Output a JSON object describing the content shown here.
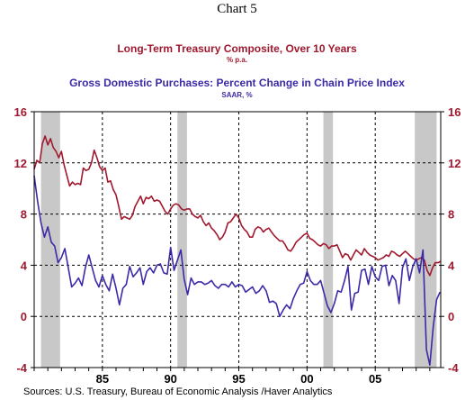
{
  "page": {
    "chart_label": "Chart 5",
    "source": "Sources:  U.S. Treasury, Bureau of Economic Analysis /Haver Analytics"
  },
  "colors": {
    "series1": "#a0192f",
    "series2": "#3b2aa8",
    "recession": "#c8c8c8"
  },
  "chart_data": {
    "type": "line",
    "xlim": [
      1980.0,
      2009.8
    ],
    "ylim": [
      -4,
      16
    ],
    "grid": true,
    "yticks_left": [
      16,
      12,
      8,
      4,
      0,
      -4
    ],
    "yticks_right": [
      16,
      12,
      8,
      4,
      0,
      -4
    ],
    "xtick_labels": [
      {
        "x": 1985,
        "label": "85"
      },
      {
        "x": 1990,
        "label": "90"
      },
      {
        "x": 1995,
        "label": "95"
      },
      {
        "x": 2000,
        "label": "00"
      },
      {
        "x": 2005,
        "label": "05"
      }
    ],
    "recessions": [
      {
        "start": 1980.5,
        "end": 1981.9
      },
      {
        "start": 1990.5,
        "end": 1991.2
      },
      {
        "start": 2001.2,
        "end": 2001.9
      },
      {
        "start": 2007.9,
        "end": 2009.5
      }
    ],
    "series": [
      {
        "name": "Long-Term Treasury Composite, Over 10 Years",
        "unit": "% p.a.",
        "points": [
          [
            1980.0,
            11.5
          ],
          [
            1980.2,
            12.2
          ],
          [
            1980.4,
            12.0
          ],
          [
            1980.6,
            13.5
          ],
          [
            1980.8,
            14.1
          ],
          [
            1981.0,
            13.4
          ],
          [
            1981.2,
            13.9
          ],
          [
            1981.4,
            13.2
          ],
          [
            1981.6,
            12.9
          ],
          [
            1981.8,
            12.4
          ],
          [
            1982.0,
            12.9
          ],
          [
            1982.2,
            11.8
          ],
          [
            1982.4,
            11.0
          ],
          [
            1982.6,
            10.2
          ],
          [
            1982.8,
            10.5
          ],
          [
            1983.0,
            10.3
          ],
          [
            1983.2,
            10.4
          ],
          [
            1983.4,
            10.3
          ],
          [
            1983.6,
            11.6
          ],
          [
            1983.8,
            11.4
          ],
          [
            1984.0,
            11.5
          ],
          [
            1984.2,
            12.0
          ],
          [
            1984.4,
            13.0
          ],
          [
            1984.6,
            12.4
          ],
          [
            1984.8,
            11.7
          ],
          [
            1985.0,
            11.4
          ],
          [
            1985.2,
            11.6
          ],
          [
            1985.4,
            10.5
          ],
          [
            1985.6,
            10.6
          ],
          [
            1985.8,
            9.9
          ],
          [
            1986.0,
            9.5
          ],
          [
            1986.2,
            8.6
          ],
          [
            1986.4,
            7.6
          ],
          [
            1986.6,
            7.8
          ],
          [
            1986.8,
            7.7
          ],
          [
            1987.0,
            7.6
          ],
          [
            1987.2,
            7.9
          ],
          [
            1987.4,
            8.6
          ],
          [
            1987.6,
            9.0
          ],
          [
            1987.8,
            9.4
          ],
          [
            1988.0,
            8.8
          ],
          [
            1988.2,
            9.3
          ],
          [
            1988.4,
            9.2
          ],
          [
            1988.6,
            9.4
          ],
          [
            1988.8,
            9.0
          ],
          [
            1989.0,
            9.1
          ],
          [
            1989.2,
            9.0
          ],
          [
            1989.4,
            8.6
          ],
          [
            1989.6,
            8.2
          ],
          [
            1989.8,
            8.0
          ],
          [
            1990.0,
            8.4
          ],
          [
            1990.2,
            8.7
          ],
          [
            1990.4,
            8.8
          ],
          [
            1990.6,
            8.7
          ],
          [
            1990.8,
            8.4
          ],
          [
            1991.0,
            8.3
          ],
          [
            1991.2,
            8.4
          ],
          [
            1991.4,
            8.4
          ],
          [
            1991.6,
            8.0
          ],
          [
            1991.8,
            7.8
          ],
          [
            1992.0,
            7.7
          ],
          [
            1992.2,
            7.9
          ],
          [
            1992.4,
            7.4
          ],
          [
            1992.6,
            7.1
          ],
          [
            1992.8,
            7.3
          ],
          [
            1993.0,
            6.9
          ],
          [
            1993.2,
            6.7
          ],
          [
            1993.4,
            6.4
          ],
          [
            1993.6,
            6.0
          ],
          [
            1993.8,
            6.2
          ],
          [
            1994.0,
            6.6
          ],
          [
            1994.2,
            7.3
          ],
          [
            1994.4,
            7.4
          ],
          [
            1994.6,
            7.7
          ],
          [
            1994.8,
            8.0
          ],
          [
            1995.0,
            7.7
          ],
          [
            1995.2,
            7.1
          ],
          [
            1995.4,
            6.8
          ],
          [
            1995.6,
            6.6
          ],
          [
            1995.8,
            6.2
          ],
          [
            1996.0,
            6.2
          ],
          [
            1996.2,
            6.8
          ],
          [
            1996.4,
            7.0
          ],
          [
            1996.6,
            6.9
          ],
          [
            1996.8,
            6.6
          ],
          [
            1997.0,
            6.8
          ],
          [
            1997.2,
            6.9
          ],
          [
            1997.4,
            6.6
          ],
          [
            1997.6,
            6.3
          ],
          [
            1997.8,
            6.1
          ],
          [
            1998.0,
            5.9
          ],
          [
            1998.2,
            5.9
          ],
          [
            1998.4,
            5.6
          ],
          [
            1998.6,
            5.2
          ],
          [
            1998.8,
            5.1
          ],
          [
            1999.0,
            5.4
          ],
          [
            1999.2,
            5.8
          ],
          [
            1999.4,
            6.0
          ],
          [
            1999.6,
            6.2
          ],
          [
            1999.8,
            6.4
          ],
          [
            2000.0,
            6.5
          ],
          [
            2000.2,
            6.1
          ],
          [
            2000.4,
            6.0
          ],
          [
            2000.6,
            5.8
          ],
          [
            2000.8,
            5.6
          ],
          [
            2001.0,
            5.5
          ],
          [
            2001.2,
            5.7
          ],
          [
            2001.4,
            5.6
          ],
          [
            2001.6,
            5.3
          ],
          [
            2001.8,
            5.5
          ],
          [
            2002.0,
            5.5
          ],
          [
            2002.2,
            5.6
          ],
          [
            2002.4,
            5.1
          ],
          [
            2002.6,
            4.6
          ],
          [
            2002.8,
            4.9
          ],
          [
            2003.0,
            4.8
          ],
          [
            2003.2,
            4.4
          ],
          [
            2003.4,
            4.8
          ],
          [
            2003.6,
            5.2
          ],
          [
            2003.8,
            5.0
          ],
          [
            2004.0,
            4.8
          ],
          [
            2004.2,
            5.3
          ],
          [
            2004.4,
            5.0
          ],
          [
            2004.6,
            4.8
          ],
          [
            2004.8,
            4.7
          ],
          [
            2005.0,
            4.6
          ],
          [
            2005.2,
            4.4
          ],
          [
            2005.4,
            4.5
          ],
          [
            2005.6,
            4.6
          ],
          [
            2005.8,
            4.8
          ],
          [
            2006.0,
            4.7
          ],
          [
            2006.2,
            5.1
          ],
          [
            2006.4,
            5.0
          ],
          [
            2006.6,
            4.8
          ],
          [
            2006.8,
            4.7
          ],
          [
            2007.0,
            4.9
          ],
          [
            2007.2,
            5.1
          ],
          [
            2007.4,
            4.9
          ],
          [
            2007.6,
            4.7
          ],
          [
            2007.8,
            4.5
          ],
          [
            2008.0,
            4.4
          ],
          [
            2008.2,
            4.5
          ],
          [
            2008.4,
            4.6
          ],
          [
            2008.6,
            4.4
          ],
          [
            2008.8,
            3.6
          ],
          [
            2009.0,
            3.2
          ],
          [
            2009.2,
            3.8
          ],
          [
            2009.4,
            4.2
          ],
          [
            2009.6,
            4.2
          ],
          [
            2009.8,
            4.3
          ]
        ]
      },
      {
        "name": "Gross Domestic Purchases: Percent Change in Chain Price Index",
        "unit": "SAAR, %",
        "points": [
          [
            1980.0,
            11.0
          ],
          [
            1980.25,
            9.0
          ],
          [
            1980.5,
            7.3
          ],
          [
            1980.75,
            6.2
          ],
          [
            1981.0,
            7.0
          ],
          [
            1981.25,
            5.8
          ],
          [
            1981.5,
            5.5
          ],
          [
            1981.75,
            4.2
          ],
          [
            1982.0,
            4.6
          ],
          [
            1982.25,
            5.3
          ],
          [
            1982.5,
            3.8
          ],
          [
            1982.75,
            2.3
          ],
          [
            1983.0,
            2.6
          ],
          [
            1983.25,
            3.0
          ],
          [
            1983.5,
            2.4
          ],
          [
            1983.75,
            3.8
          ],
          [
            1984.0,
            4.8
          ],
          [
            1984.25,
            3.8
          ],
          [
            1984.5,
            2.8
          ],
          [
            1984.75,
            2.3
          ],
          [
            1985.0,
            3.2
          ],
          [
            1985.25,
            2.5
          ],
          [
            1985.5,
            2.0
          ],
          [
            1985.75,
            3.3
          ],
          [
            1986.0,
            2.2
          ],
          [
            1986.25,
            0.9
          ],
          [
            1986.5,
            2.2
          ],
          [
            1986.75,
            2.5
          ],
          [
            1987.0,
            3.9
          ],
          [
            1987.25,
            3.1
          ],
          [
            1987.5,
            3.4
          ],
          [
            1987.75,
            3.8
          ],
          [
            1988.0,
            2.5
          ],
          [
            1988.25,
            3.5
          ],
          [
            1988.5,
            3.8
          ],
          [
            1988.75,
            3.4
          ],
          [
            1989.0,
            4.0
          ],
          [
            1989.25,
            4.1
          ],
          [
            1989.5,
            3.4
          ],
          [
            1989.75,
            3.3
          ],
          [
            1990.0,
            5.4
          ],
          [
            1990.25,
            3.6
          ],
          [
            1990.5,
            4.4
          ],
          [
            1990.75,
            5.2
          ],
          [
            1991.0,
            2.9
          ],
          [
            1991.25,
            1.7
          ],
          [
            1991.5,
            3.0
          ],
          [
            1991.75,
            2.5
          ],
          [
            1992.0,
            2.7
          ],
          [
            1992.25,
            2.7
          ],
          [
            1992.5,
            2.5
          ],
          [
            1992.75,
            2.6
          ],
          [
            1993.0,
            2.8
          ],
          [
            1993.25,
            2.4
          ],
          [
            1993.5,
            2.2
          ],
          [
            1993.75,
            2.5
          ],
          [
            1994.0,
            2.5
          ],
          [
            1994.25,
            2.3
          ],
          [
            1994.5,
            2.7
          ],
          [
            1994.75,
            2.3
          ],
          [
            1995.0,
            2.5
          ],
          [
            1995.25,
            2.4
          ],
          [
            1995.5,
            1.9
          ],
          [
            1995.75,
            2.1
          ],
          [
            1996.0,
            2.3
          ],
          [
            1996.25,
            1.8
          ],
          [
            1996.5,
            2.0
          ],
          [
            1996.75,
            2.4
          ],
          [
            1997.0,
            2.0
          ],
          [
            1997.25,
            1.1
          ],
          [
            1997.5,
            1.2
          ],
          [
            1997.75,
            1.0
          ],
          [
            1998.0,
            0.0
          ],
          [
            1998.25,
            0.5
          ],
          [
            1998.5,
            0.9
          ],
          [
            1998.75,
            0.6
          ],
          [
            1999.0,
            1.4
          ],
          [
            1999.25,
            2.0
          ],
          [
            1999.5,
            2.5
          ],
          [
            1999.75,
            2.6
          ],
          [
            2000.0,
            3.5
          ],
          [
            2000.25,
            2.8
          ],
          [
            2000.5,
            2.5
          ],
          [
            2000.75,
            2.5
          ],
          [
            2001.0,
            2.8
          ],
          [
            2001.25,
            1.8
          ],
          [
            2001.5,
            0.8
          ],
          [
            2001.75,
            0.3
          ],
          [
            2002.0,
            1.0
          ],
          [
            2002.25,
            2.0
          ],
          [
            2002.5,
            1.9
          ],
          [
            2002.75,
            2.8
          ],
          [
            2003.0,
            3.9
          ],
          [
            2003.25,
            0.5
          ],
          [
            2003.5,
            1.8
          ],
          [
            2003.75,
            1.9
          ],
          [
            2004.0,
            3.6
          ],
          [
            2004.25,
            3.7
          ],
          [
            2004.5,
            2.5
          ],
          [
            2004.75,
            3.9
          ],
          [
            2005.0,
            3.1
          ],
          [
            2005.25,
            2.8
          ],
          [
            2005.5,
            3.9
          ],
          [
            2005.75,
            4.0
          ],
          [
            2006.0,
            2.4
          ],
          [
            2006.25,
            3.2
          ],
          [
            2006.5,
            2.8
          ],
          [
            2006.75,
            1.0
          ],
          [
            2007.0,
            3.8
          ],
          [
            2007.25,
            4.5
          ],
          [
            2007.5,
            2.8
          ],
          [
            2007.75,
            3.9
          ],
          [
            2008.0,
            4.5
          ],
          [
            2008.25,
            3.4
          ],
          [
            2008.5,
            5.2
          ],
          [
            2008.75,
            -2.6
          ],
          [
            2009.0,
            -3.8
          ],
          [
            2009.25,
            -0.8
          ],
          [
            2009.5,
            1.3
          ],
          [
            2009.75,
            1.9
          ]
        ]
      }
    ]
  }
}
